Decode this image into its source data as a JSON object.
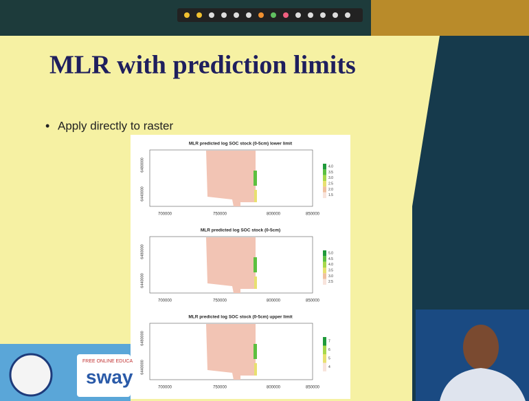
{
  "slide": {
    "title": "MLR with prediction limits",
    "bullets": [
      "Apply directly to raster"
    ]
  },
  "figure": {
    "panels": [
      {
        "title": "MLR predicted log SOC stock (0-5cm) lower limit",
        "xticks": [
          "700000",
          "750000",
          "800000",
          "850000"
        ],
        "yticks": [
          "6440000",
          "6480000"
        ],
        "legend": [
          "4.0",
          "3.5",
          "3.0",
          "2.5",
          "2.0",
          "1.5"
        ]
      },
      {
        "title": "MLR predicted log SOC stock (0-5cm)",
        "xticks": [
          "700000",
          "750000",
          "800000",
          "850000"
        ],
        "yticks": [
          "6440000",
          "6480000"
        ],
        "legend": [
          "5.0",
          "4.5",
          "4.0",
          "3.5",
          "3.0",
          "2.5"
        ]
      },
      {
        "title": "MLR predicted log SOC stock (0-5cm) upper limit",
        "xticks": [
          "700000",
          "750000",
          "800000",
          "850000"
        ],
        "yticks": [
          "6440000",
          "6480000"
        ],
        "legend": [
          "7",
          "6",
          "5",
          "4"
        ]
      }
    ]
  },
  "logo": {
    "tagline": "FREE ONLINE EDUCA",
    "name": "sway"
  }
}
